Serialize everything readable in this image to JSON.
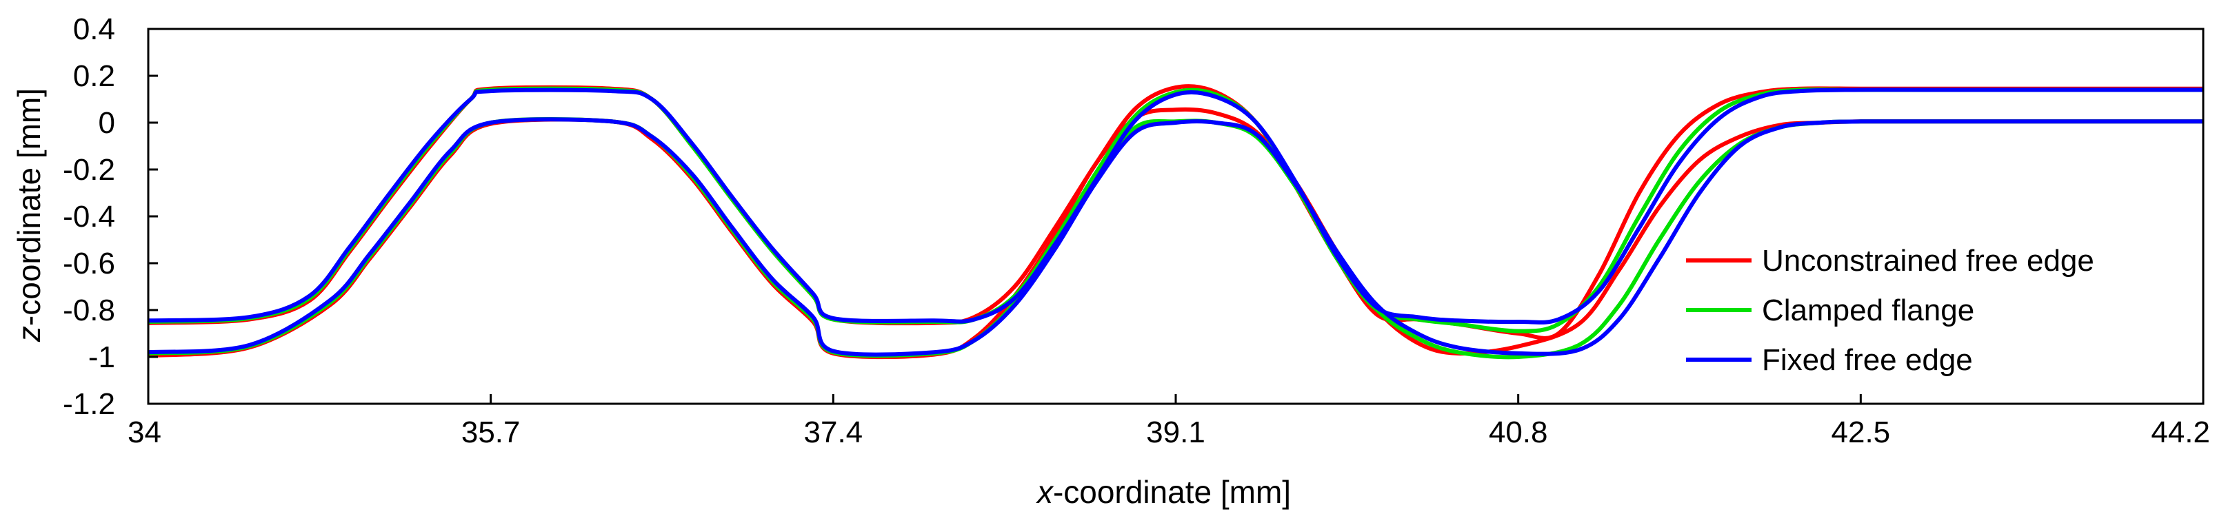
{
  "chart_data": {
    "type": "line",
    "title": "",
    "xlabel_italic": "x",
    "xlabel_rest": "-coordinate [mm]",
    "ylabel_italic": "z",
    "ylabel_rest": "-coordinate [mm]",
    "xlim": [
      34,
      44.2
    ],
    "ylim": [
      -1.2,
      0.4
    ],
    "xticks": [
      "34",
      "35.7",
      "37.4",
      "39.1",
      "40.8",
      "42.5",
      "44.2"
    ],
    "yticks": [
      "0.4",
      "0.2",
      "0",
      "-0.2",
      "-0.4",
      "-0.6",
      "-0.8",
      "-1",
      "-1.2"
    ],
    "legend_position": "right",
    "series": [
      {
        "name": "Unconstrained free edge",
        "color": "#ff0000",
        "lines": [
          {
            "x": [
              34,
              34.5,
              34.9,
              35.1,
              35.3,
              35.5,
              35.7,
              36.3,
              36.5,
              36.7,
              36.9,
              37.1,
              37.3,
              37.4,
              37.9,
              38.1,
              38.3,
              38.5,
              38.7,
              38.9,
              39.1,
              39.3,
              39.5,
              39.7,
              39.9,
              40.1,
              40.3,
              40.5,
              40.8,
              41.1,
              41.3,
              41.5,
              41.7,
              41.9,
              42.1,
              42.3,
              42.5,
              43.0,
              44.2
            ],
            "y": [
              -0.995,
              -0.96,
              -0.78,
              -0.58,
              -0.36,
              -0.14,
              -0.005,
              0.005,
              -0.07,
              -0.24,
              -0.47,
              -0.69,
              -0.85,
              -0.985,
              -0.99,
              -0.92,
              -0.74,
              -0.48,
              -0.18,
              0.02,
              0.055,
              0.04,
              -0.04,
              -0.26,
              -0.55,
              -0.8,
              -0.94,
              -0.985,
              -0.955,
              -0.86,
              -0.63,
              -0.36,
              -0.16,
              -0.06,
              -0.01,
              0.0,
              0.005,
              0.005,
              0.005
            ]
          },
          {
            "x": [
              34,
              34.5,
              34.8,
              35.0,
              35.2,
              35.4,
              35.6,
              35.7,
              36.3,
              36.5,
              36.7,
              36.9,
              37.1,
              37.3,
              37.4,
              37.9,
              38.1,
              38.3,
              38.5,
              38.7,
              38.9,
              39.1,
              39.3,
              39.5,
              39.7,
              39.9,
              40.1,
              40.3,
              40.5,
              40.8,
              41.0,
              41.2,
              41.4,
              41.6,
              41.8,
              42.0,
              42.2,
              42.5,
              43.0,
              44.2
            ],
            "y": [
              -0.855,
              -0.84,
              -0.76,
              -0.55,
              -0.32,
              -0.1,
              0.1,
              0.145,
              0.145,
              0.1,
              -0.1,
              -0.33,
              -0.55,
              -0.74,
              -0.84,
              -0.855,
              -0.83,
              -0.7,
              -0.45,
              -0.18,
              0.06,
              0.15,
              0.13,
              0.0,
              -0.28,
              -0.58,
              -0.82,
              -0.84,
              -0.86,
              -0.9,
              -0.9,
              -0.65,
              -0.3,
              -0.05,
              0.08,
              0.13,
              0.145,
              0.145,
              0.145,
              0.145
            ]
          }
        ]
      },
      {
        "name": "Clamped flange",
        "color": "#00e000",
        "lines": [
          {
            "x": [
              34,
              34.5,
              34.9,
              35.1,
              35.3,
              35.5,
              35.7,
              36.3,
              36.5,
              36.7,
              36.9,
              37.1,
              37.3,
              37.4,
              37.9,
              38.1,
              38.3,
              38.5,
              38.7,
              38.9,
              39.1,
              39.3,
              39.5,
              39.7,
              39.9,
              40.1,
              40.3,
              40.5,
              40.8,
              41.1,
              41.3,
              41.5,
              41.7,
              41.9,
              42.1,
              42.3,
              42.5,
              43.0,
              44.2
            ],
            "y": [
              -0.985,
              -0.955,
              -0.77,
              -0.57,
              -0.35,
              -0.13,
              0.0,
              0.005,
              -0.06,
              -0.23,
              -0.46,
              -0.68,
              -0.84,
              -0.98,
              -0.985,
              -0.93,
              -0.77,
              -0.52,
              -0.23,
              -0.02,
              0.005,
              0.0,
              -0.06,
              -0.28,
              -0.57,
              -0.8,
              -0.92,
              -0.98,
              -1.0,
              -0.95,
              -0.78,
              -0.5,
              -0.25,
              -0.09,
              -0.02,
              0.0,
              0.005,
              0.005,
              0.005
            ]
          },
          {
            "x": [
              34,
              34.5,
              34.8,
              35.0,
              35.2,
              35.4,
              35.6,
              35.7,
              36.3,
              36.5,
              36.7,
              36.9,
              37.1,
              37.3,
              37.4,
              37.9,
              38.1,
              38.3,
              38.5,
              38.7,
              38.9,
              39.1,
              39.3,
              39.5,
              39.7,
              39.9,
              40.1,
              40.3,
              40.5,
              40.8,
              41.0,
              41.2,
              41.4,
              41.6,
              41.8,
              42.0,
              42.2,
              42.5,
              43.0,
              44.2
            ],
            "y": [
              -0.85,
              -0.835,
              -0.75,
              -0.54,
              -0.31,
              -0.09,
              0.1,
              0.14,
              0.14,
              0.1,
              -0.1,
              -0.33,
              -0.55,
              -0.74,
              -0.84,
              -0.85,
              -0.84,
              -0.74,
              -0.5,
              -0.22,
              0.03,
              0.13,
              0.12,
              0.0,
              -0.27,
              -0.58,
              -0.8,
              -0.84,
              -0.86,
              -0.89,
              -0.86,
              -0.7,
              -0.4,
              -0.12,
              0.05,
              0.12,
              0.14,
              0.14,
              0.14,
              0.14
            ]
          }
        ]
      },
      {
        "name": "Fixed free edge",
        "color": "#0000ff",
        "lines": [
          {
            "x": [
              34,
              34.5,
              34.9,
              35.1,
              35.3,
              35.5,
              35.7,
              36.3,
              36.5,
              36.7,
              36.9,
              37.1,
              37.3,
              37.4,
              37.9,
              38.1,
              38.3,
              38.5,
              38.7,
              38.9,
              39.1,
              39.3,
              39.5,
              39.7,
              39.9,
              40.1,
              40.3,
              40.5,
              40.8,
              41.1,
              41.3,
              41.5,
              41.7,
              41.9,
              42.1,
              42.3,
              42.5,
              43.0,
              44.2
            ],
            "y": [
              -0.98,
              -0.95,
              -0.76,
              -0.56,
              -0.34,
              -0.12,
              0.0,
              0.005,
              -0.06,
              -0.22,
              -0.45,
              -0.67,
              -0.83,
              -0.975,
              -0.98,
              -0.93,
              -0.78,
              -0.54,
              -0.26,
              -0.04,
              0.0,
              0.0,
              -0.05,
              -0.27,
              -0.55,
              -0.78,
              -0.9,
              -0.96,
              -0.985,
              -0.97,
              -0.84,
              -0.58,
              -0.3,
              -0.1,
              -0.02,
              0.0,
              0.005,
              0.005,
              0.005
            ]
          },
          {
            "x": [
              34,
              34.5,
              34.8,
              35.0,
              35.2,
              35.4,
              35.6,
              35.7,
              36.3,
              36.5,
              36.7,
              36.9,
              37.1,
              37.3,
              37.4,
              37.9,
              38.1,
              38.3,
              38.5,
              38.7,
              38.9,
              39.1,
              39.3,
              39.5,
              39.7,
              39.9,
              40.1,
              40.3,
              40.5,
              40.8,
              41.0,
              41.2,
              41.4,
              41.6,
              41.8,
              42.0,
              42.2,
              42.5,
              43.0,
              44.2
            ],
            "y": [
              -0.845,
              -0.83,
              -0.74,
              -0.53,
              -0.3,
              -0.08,
              0.1,
              0.135,
              0.135,
              0.1,
              -0.09,
              -0.32,
              -0.54,
              -0.73,
              -0.835,
              -0.845,
              -0.84,
              -0.75,
              -0.52,
              -0.25,
              0.01,
              0.12,
              0.11,
              0.0,
              -0.26,
              -0.57,
              -0.79,
              -0.83,
              -0.845,
              -0.85,
              -0.84,
              -0.72,
              -0.45,
              -0.17,
              0.02,
              0.11,
              0.135,
              0.14,
              0.14,
              0.14
            ]
          }
        ]
      }
    ]
  }
}
